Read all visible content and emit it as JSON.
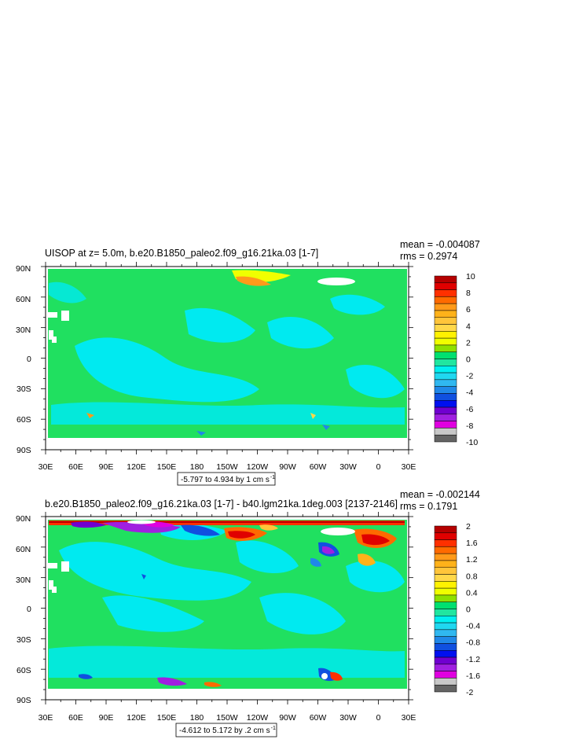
{
  "chart_data": [
    {
      "type": "heatmap",
      "title": "UISOP at z=   5.0m, b.e20.B1850_paleo2.f09_g16.21ka.03 [1-7]",
      "stats": [
        "mean = -0.004087",
        "rms = 0.2974"
      ],
      "contour_info": "-5.797 to 4.934 by 1 cm s",
      "contour_info_sup": "-1",
      "x_ticks": [
        "30E",
        "60E",
        "90E",
        "120E",
        "150E",
        "180",
        "150W",
        "120W",
        "90W",
        "60W",
        "30W",
        "0",
        "30E"
      ],
      "y_ticks": [
        "90N",
        "60N",
        "30N",
        "0",
        "30S",
        "60S",
        "90S"
      ],
      "colorbar": {
        "labels": [
          "10",
          "8",
          "6",
          "4",
          "2",
          "0",
          "-2",
          "-4",
          "-6",
          "-8",
          "-10"
        ],
        "colors": [
          "#b50000",
          "#e00000",
          "#ff3000",
          "#ff6a00",
          "#ff9a1a",
          "#ffb21a",
          "#ffc53a",
          "#ffd84a",
          "#fff200",
          "#f0ff00",
          "#8ee000",
          "#00e070",
          "#20e6a0",
          "#00f0f0",
          "#20d8f0",
          "#30b8f0",
          "#2088e8",
          "#1050e0",
          "#0010f0",
          "#7000d0",
          "#a020e0",
          "#e000e0",
          "#c8c8c8",
          "#646464"
        ]
      }
    },
    {
      "type": "heatmap",
      "title": "b.e20.B1850_paleo2.f09_g16.21ka.03 [1-7] - b40.lgm21ka.1deg.003 [2137-2146]",
      "stats": [
        "mean = -0.002144",
        "rms = 0.1791"
      ],
      "contour_info": "-4.612 to 5.172 by .2 cm s",
      "contour_info_sup": "-1",
      "x_ticks": [
        "30E",
        "60E",
        "90E",
        "120E",
        "150E",
        "180",
        "150W",
        "120W",
        "90W",
        "60W",
        "30W",
        "0",
        "30E"
      ],
      "y_ticks": [
        "90N",
        "60N",
        "30N",
        "0",
        "30S",
        "60S",
        "90S"
      ],
      "colorbar": {
        "labels": [
          "2",
          "1.6",
          "1.2",
          "0.8",
          "0.4",
          "0",
          "-0.4",
          "-0.8",
          "-1.2",
          "-1.6",
          "-2"
        ],
        "colors": [
          "#b50000",
          "#e00000",
          "#ff3000",
          "#ff6a00",
          "#ff9a1a",
          "#ffb21a",
          "#ffc53a",
          "#ffd84a",
          "#fff200",
          "#f0ff00",
          "#8ee000",
          "#00e070",
          "#20e6a0",
          "#00f0f0",
          "#20d8f0",
          "#30b8f0",
          "#2088e8",
          "#1050e0",
          "#0010f0",
          "#7000d0",
          "#a020e0",
          "#e000e0",
          "#c8c8c8",
          "#646464"
        ]
      }
    }
  ]
}
